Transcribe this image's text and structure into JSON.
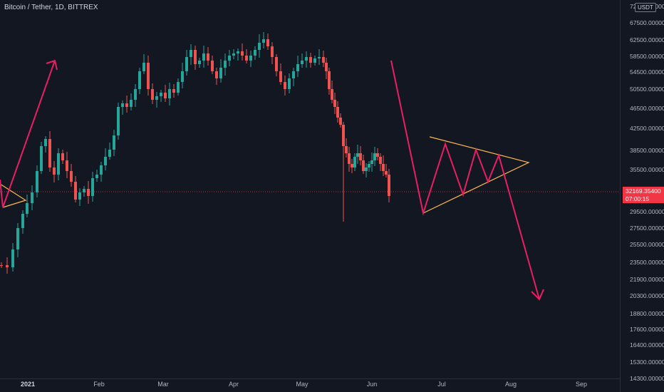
{
  "header": {
    "symbol_title": "Bitcoin / Tether, 1D, BITTREX"
  },
  "currency_badge": "USDT",
  "price_axis": {
    "labels": [
      "72500.00000",
      "67500.00000",
      "62500.00000",
      "58500.00000",
      "54500.00000",
      "50500.00000",
      "46500.00000",
      "42500.00000",
      "38500.00000",
      "35500.00000",
      "32169.35400",
      "29500.00000",
      "27500.00000",
      "25500.00000",
      "23500.00000",
      "21900.00000",
      "20300.00000",
      "18800.00000",
      "17600.00000",
      "16400.00000",
      "15300.00000",
      "14300.00000"
    ]
  },
  "current_price": {
    "value": "32169.35400",
    "countdown": "07:00:15"
  },
  "time_axis": {
    "labels": [
      {
        "text": "2021",
        "bold": true
      },
      {
        "text": "Feb",
        "bold": false
      },
      {
        "text": "Mar",
        "bold": false
      },
      {
        "text": "Apr",
        "bold": false
      },
      {
        "text": "May",
        "bold": false
      },
      {
        "text": "Jun",
        "bold": false
      },
      {
        "text": "Jul",
        "bold": false
      },
      {
        "text": "Aug",
        "bold": false
      },
      {
        "text": "Sep",
        "bold": false
      }
    ]
  },
  "colors": {
    "background": "#131722",
    "up_candle": "#26a69a",
    "down_candle": "#ef5350",
    "drawing_pink": "#e91e63",
    "drawing_yellow": "#ffb74d",
    "price_line": "#f23645"
  },
  "drawings": [
    "pink-up-arrow",
    "pink-zigzag-down-arrow",
    "yellow-symmetrical-triangle",
    "yellow-small-triangle-left"
  ]
}
